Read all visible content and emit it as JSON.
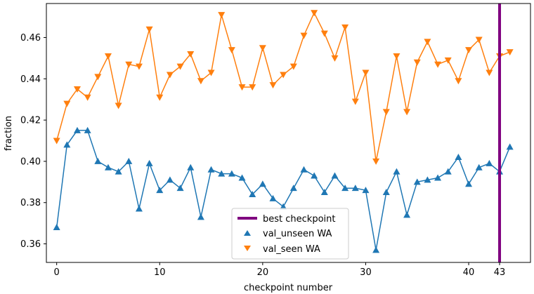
{
  "chart_data": {
    "type": "line",
    "title": "",
    "xlabel": "checkpoint number",
    "ylabel": "fraction",
    "xlim": [
      -1,
      46
    ],
    "ylim": [
      0.351,
      0.4765
    ],
    "xticks": [
      0,
      10,
      20,
      30,
      40,
      43
    ],
    "yticks": [
      0.36,
      0.38,
      0.4,
      0.42,
      0.44,
      0.46
    ],
    "ytick_labels": [
      "0.36",
      "0.38",
      "0.40",
      "0.42",
      "0.44",
      "0.46"
    ],
    "grid": false,
    "legend_position": "bottom-center",
    "best_checkpoint": {
      "name": "best checkpoint",
      "x": 43,
      "color": "#800080"
    },
    "x": [
      0,
      1,
      2,
      3,
      4,
      5,
      6,
      7,
      8,
      9,
      10,
      11,
      12,
      13,
      14,
      15,
      16,
      17,
      18,
      19,
      20,
      21,
      22,
      23,
      24,
      25,
      26,
      27,
      28,
      29,
      30,
      31,
      32,
      33,
      34,
      35,
      36,
      37,
      38,
      39,
      40,
      41,
      42,
      43,
      44
    ],
    "series": [
      {
        "name": "val_unseen WA",
        "color": "#1f77b4",
        "marker": "triangle-up",
        "values": [
          0.368,
          0.408,
          0.415,
          0.415,
          0.4,
          0.397,
          0.395,
          0.4,
          0.377,
          0.399,
          0.386,
          0.391,
          0.387,
          0.397,
          0.373,
          0.396,
          0.394,
          0.394,
          0.392,
          0.384,
          0.389,
          0.382,
          0.378,
          0.387,
          0.396,
          0.393,
          0.385,
          0.393,
          0.387,
          0.387,
          0.386,
          0.357,
          0.385,
          0.395,
          0.374,
          0.39,
          0.391,
          0.392,
          0.395,
          0.402,
          0.389,
          0.397,
          0.399,
          0.395,
          0.407
        ]
      },
      {
        "name": "val_seen WA",
        "color": "#ff7f0e",
        "marker": "triangle-down",
        "values": [
          0.41,
          0.428,
          0.435,
          0.431,
          0.441,
          0.451,
          0.427,
          0.447,
          0.446,
          0.464,
          0.431,
          0.442,
          0.446,
          0.452,
          0.439,
          0.443,
          0.471,
          0.454,
          0.436,
          0.436,
          0.455,
          0.437,
          0.442,
          0.446,
          0.461,
          0.472,
          0.462,
          0.45,
          0.465,
          0.429,
          0.443,
          0.4,
          0.424,
          0.451,
          0.424,
          0.448,
          0.458,
          0.447,
          0.449,
          0.439,
          0.454,
          0.459,
          0.443,
          0.451,
          0.453
        ]
      }
    ]
  }
}
